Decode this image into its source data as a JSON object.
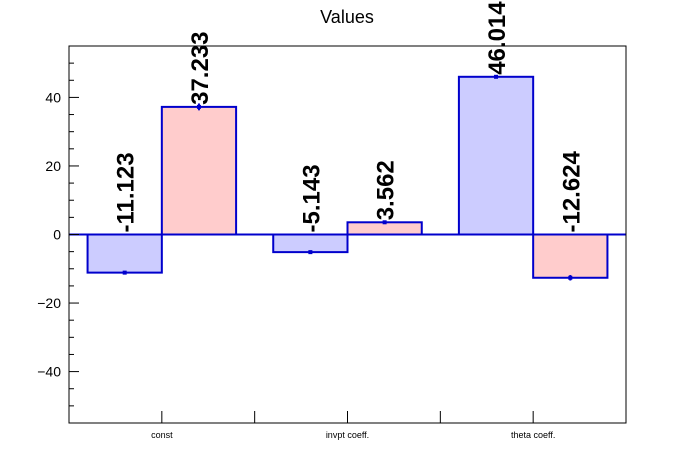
{
  "chart_data": {
    "type": "bar",
    "title": "Values",
    "categories": [
      "const",
      "invpt coeff.",
      "theta coeff."
    ],
    "series": [
      {
        "values": [
          -11.123,
          -5.143,
          46.014
        ],
        "errors": [
          0.0,
          0.0,
          0.0
        ],
        "color": "#ccccff",
        "edge": "#0000cc"
      },
      {
        "values": [
          37.233,
          3.562,
          -12.624
        ],
        "errors": [
          1.0,
          0.0,
          0.8
        ],
        "color": "#ffcccc",
        "edge": "#0000cc"
      }
    ],
    "value_labels": [
      [
        "-11.123",
        "-5.143",
        "46.014"
      ],
      [
        "37.233",
        "3.562",
        "-12.624"
      ]
    ],
    "ylim": [
      -55,
      55
    ],
    "yticks": [
      -40,
      -20,
      0,
      20,
      40
    ],
    "ytick_labels": [
      "−40",
      "−20",
      "0",
      "20",
      "40"
    ],
    "xlabel": "",
    "ylabel": "",
    "grid": false,
    "zero_line_color": "#0000cc"
  }
}
